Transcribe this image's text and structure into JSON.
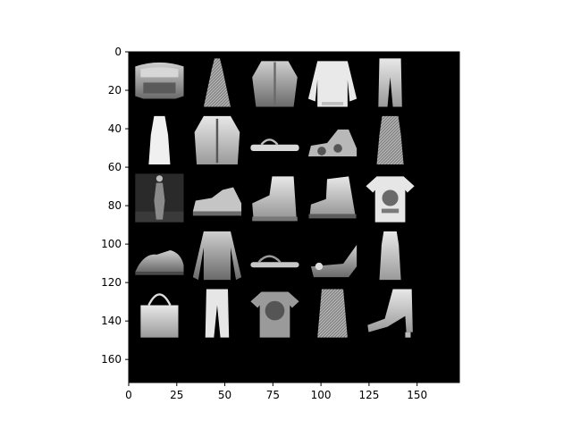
{
  "figure": {
    "background": "#ffffff",
    "image_background": "#000000",
    "colormap": "gray"
  },
  "axes": {
    "xlim": [
      0,
      172
    ],
    "ylim": [
      172,
      0
    ],
    "x_ticks": [
      0,
      25,
      50,
      75,
      100,
      125,
      150
    ],
    "x_tick_labels": [
      "0",
      "25",
      "50",
      "75",
      "100",
      "125",
      "150"
    ],
    "y_ticks": [
      0,
      20,
      40,
      60,
      80,
      100,
      120,
      140,
      160
    ],
    "y_tick_labels": [
      "0",
      "20",
      "40",
      "60",
      "80",
      "100",
      "120",
      "140",
      "160"
    ]
  },
  "grid": {
    "rows": 5,
    "cols": 5,
    "tile_size": 28,
    "padding": 2,
    "items": [
      {
        "row": 0,
        "col": 0,
        "icon": "cropped-top-icon"
      },
      {
        "row": 0,
        "col": 1,
        "icon": "long-dress-icon"
      },
      {
        "row": 0,
        "col": 2,
        "icon": "hooded-jacket-icon"
      },
      {
        "row": 0,
        "col": 3,
        "icon": "pullover-icon"
      },
      {
        "row": 0,
        "col": 4,
        "icon": "trouser-icon"
      },
      {
        "row": 1,
        "col": 0,
        "icon": "dress-icon"
      },
      {
        "row": 1,
        "col": 1,
        "icon": "coat-icon"
      },
      {
        "row": 1,
        "col": 2,
        "icon": "flip-flop-sandal-icon"
      },
      {
        "row": 1,
        "col": 3,
        "icon": "strappy-sandal-icon"
      },
      {
        "row": 1,
        "col": 4,
        "icon": "striped-dress-icon"
      },
      {
        "row": 2,
        "col": 0,
        "icon": "full-body-dress-photo-icon"
      },
      {
        "row": 2,
        "col": 1,
        "icon": "sandal-icon"
      },
      {
        "row": 2,
        "col": 2,
        "icon": "ankle-boot-icon"
      },
      {
        "row": 2,
        "col": 3,
        "icon": "high-top-sneaker-icon"
      },
      {
        "row": 2,
        "col": 4,
        "icon": "graphic-tshirt-icon"
      },
      {
        "row": 3,
        "col": 0,
        "icon": "sneaker-icon"
      },
      {
        "row": 3,
        "col": 1,
        "icon": "long-sleeve-shirt-icon"
      },
      {
        "row": 3,
        "col": 2,
        "icon": "thong-sandal-icon"
      },
      {
        "row": 3,
        "col": 3,
        "icon": "wedge-sandal-icon"
      },
      {
        "row": 3,
        "col": 4,
        "icon": "sleeveless-dress-icon"
      },
      {
        "row": 4,
        "col": 0,
        "icon": "bag-icon"
      },
      {
        "row": 4,
        "col": 1,
        "icon": "pants-icon"
      },
      {
        "row": 4,
        "col": 2,
        "icon": "printed-tshirt-icon"
      },
      {
        "row": 4,
        "col": 3,
        "icon": "patterned-dress-icon"
      },
      {
        "row": 4,
        "col": 4,
        "icon": "heeled-boot-icon"
      }
    ]
  }
}
